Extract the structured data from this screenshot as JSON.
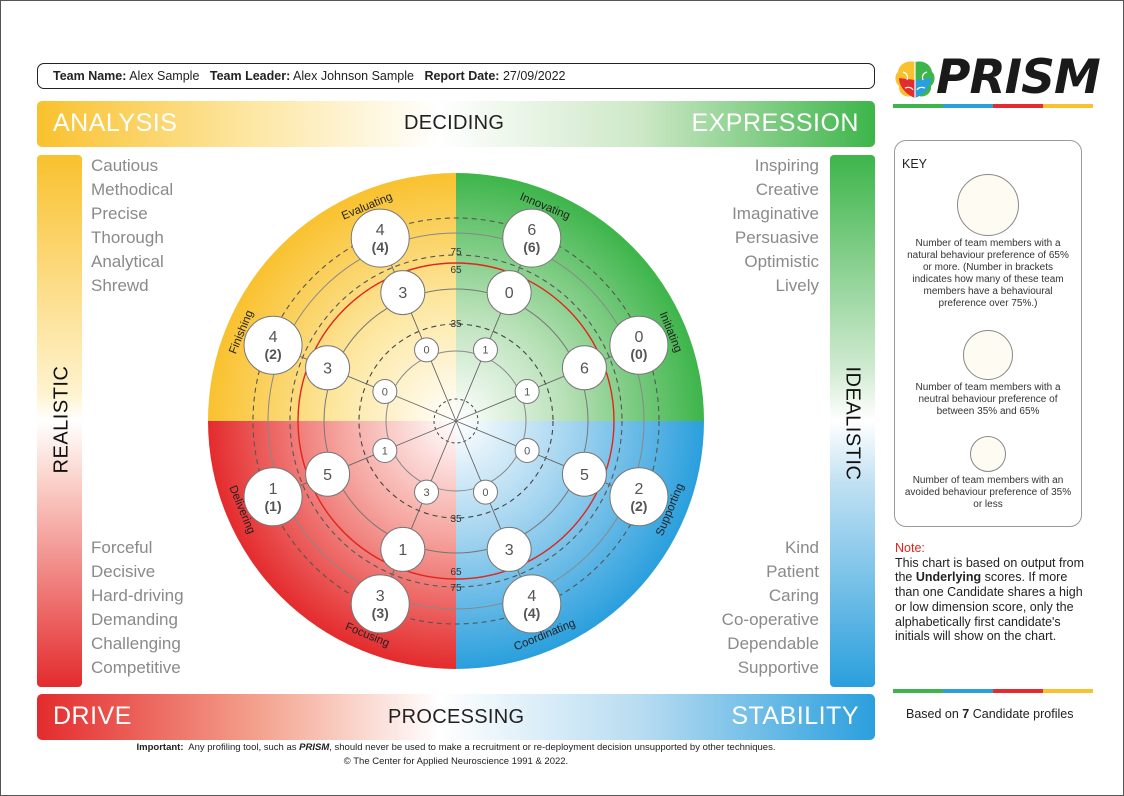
{
  "header": {
    "team_name_label": "Team Name:",
    "team_name": "Alex Sample",
    "team_leader_label": "Team Leader:",
    "team_leader": "Alex Johnson Sample",
    "report_date_label": "Report Date:",
    "report_date": "27/09/2022"
  },
  "logo": {
    "text": "PRISM",
    "colors": [
      "#3db54a",
      "#2a9fdd",
      "#e42b2d",
      "#f9c12e"
    ]
  },
  "bands": {
    "top_left": "ANALYSIS",
    "top_center": "DECIDING",
    "top_right": "EXPRESSION",
    "bottom_left": "DRIVE",
    "bottom_center": "PROCESSING",
    "bottom_right": "STABILITY",
    "left_vertical": "REALISTIC",
    "right_vertical": "IDEALISTIC"
  },
  "traits": {
    "analysis": [
      "Cautious",
      "Methodical",
      "Precise",
      "Thorough",
      "Analytical",
      "Shrewd"
    ],
    "expression": [
      "Inspiring",
      "Creative",
      "Imaginative",
      "Persuasive",
      "Optimistic",
      "Lively"
    ],
    "drive": [
      "Forceful",
      "Decisive",
      "Hard-driving",
      "Demanding",
      "Challenging",
      "Competitive"
    ],
    "stability": [
      "Kind",
      "Patient",
      "Caring",
      "Co-operative",
      "Dependable",
      "Supportive"
    ]
  },
  "colors": {
    "analysis": "#f9c12e",
    "expression": "#3db54a",
    "drive": "#e42b2d",
    "stability": "#2a9fdd"
  },
  "wheel": {
    "dimensions": [
      "Evaluating",
      "Innovating",
      "Initiating",
      "Supporting",
      "Coordinating",
      "Focusing",
      "Delivering",
      "Finishing"
    ],
    "ring_labels": [
      "75",
      "65",
      "35"
    ],
    "natural": [
      {
        "dimension": "Evaluating",
        "count": "4",
        "over75": "(4)"
      },
      {
        "dimension": "Innovating",
        "count": "6",
        "over75": "(6)"
      },
      {
        "dimension": "Initiating",
        "count": "0",
        "over75": "(0)"
      },
      {
        "dimension": "Supporting",
        "count": "2",
        "over75": "(2)"
      },
      {
        "dimension": "Coordinating",
        "count": "4",
        "over75": "(4)"
      },
      {
        "dimension": "Focusing",
        "count": "3",
        "over75": "(3)"
      },
      {
        "dimension": "Delivering",
        "count": "1",
        "over75": "(1)"
      },
      {
        "dimension": "Finishing",
        "count": "4",
        "over75": "(2)"
      }
    ],
    "neutral": [
      {
        "dimension": "Evaluating",
        "count": "3"
      },
      {
        "dimension": "Innovating",
        "count": "0"
      },
      {
        "dimension": "Initiating",
        "count": "6"
      },
      {
        "dimension": "Supporting",
        "count": "5"
      },
      {
        "dimension": "Coordinating",
        "count": "3"
      },
      {
        "dimension": "Focusing",
        "count": "1"
      },
      {
        "dimension": "Delivering",
        "count": "5"
      },
      {
        "dimension": "Finishing",
        "count": "3"
      }
    ],
    "avoided": [
      {
        "dimension": "Evaluating",
        "count": "0"
      },
      {
        "dimension": "Innovating",
        "count": "1"
      },
      {
        "dimension": "Initiating",
        "count": "1"
      },
      {
        "dimension": "Supporting",
        "count": "0"
      },
      {
        "dimension": "Coordinating",
        "count": "0"
      },
      {
        "dimension": "Focusing",
        "count": "3"
      },
      {
        "dimension": "Delivering",
        "count": "1"
      },
      {
        "dimension": "Finishing",
        "count": "0"
      }
    ]
  },
  "key": {
    "title": "KEY",
    "natural_desc": "Number of team members with a natural behaviour preference of 65% or more. (Number in brackets indicates how many of these team members have a behavioural preference over 75%.)",
    "neutral_desc": "Number of team members with a neutral behaviour preference of between 35% and 65%",
    "avoided_desc": "Number of team members with an avoided behaviour preference of 35% or less"
  },
  "note": {
    "title": "Note:",
    "text_1": "This chart is based on output from the ",
    "bold": "Underlying",
    "text_2": " scores. If more than one Candidate shares a high or low dimension score, only the alphabetically first candidate's initials will show on the chart."
  },
  "based_on": {
    "prefix": "Based on ",
    "count": "7",
    "suffix": " Candidate profiles"
  },
  "footer": {
    "important_label": "Important:",
    "important_text_1": "Any profiling tool, such as ",
    "brand": "PRISM",
    "important_text_2": ", should never be used to make a recruitment or re-deployment decision unsupported by other techniques.",
    "copyright": "© The Center for Applied Neuroscience 1991 & 2022."
  }
}
